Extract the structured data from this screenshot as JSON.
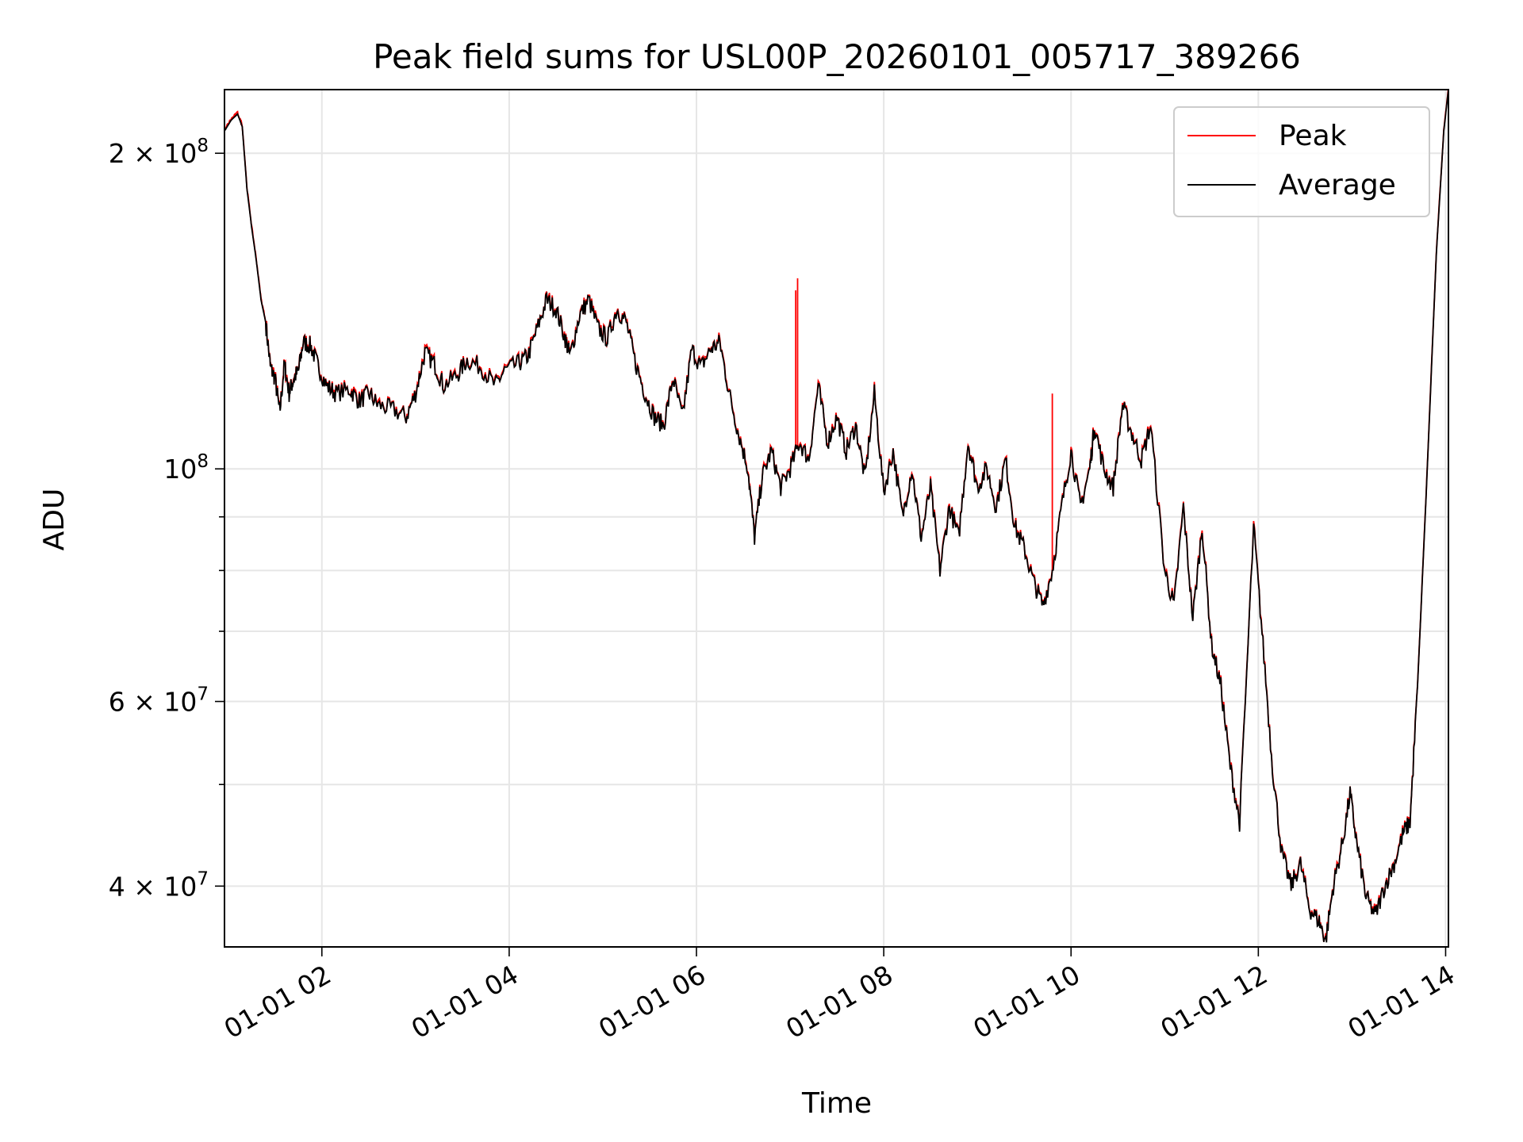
{
  "chart_data": {
    "type": "line",
    "title": "Peak field sums for USL00P_20260101_005717_389266",
    "xlabel": "Time",
    "ylabel": "ADU",
    "y_scale": "log",
    "x_range_hours": [
      0.96,
      14.03
    ],
    "ylim": [
      35000000,
      230000000
    ],
    "grid": true,
    "legend_position": "top-right",
    "x_ticks": [
      {
        "hour": 2,
        "label": "01-01 02"
      },
      {
        "hour": 4,
        "label": "01-01 04"
      },
      {
        "hour": 6,
        "label": "01-01 06"
      },
      {
        "hour": 8,
        "label": "01-01 08"
      },
      {
        "hour": 10,
        "label": "01-01 10"
      },
      {
        "hour": 12,
        "label": "01-01 12"
      },
      {
        "hour": 14,
        "label": "01-01 14"
      }
    ],
    "y_major_ticks": [
      {
        "value": 40000000,
        "mantissa": "4",
        "exponent": "7"
      },
      {
        "value": 60000000,
        "mantissa": "6",
        "exponent": "7"
      },
      {
        "value": 100000000,
        "mantissa": "",
        "exponent": "8"
      },
      {
        "value": 200000000,
        "mantissa": "2",
        "exponent": "8"
      }
    ],
    "y_minor_ticks": [
      50000000,
      70000000,
      80000000,
      90000000
    ],
    "y_tick_base": "10",
    "y_tick_times": "×",
    "series": [
      {
        "name": "Peak",
        "color": "#ff0000",
        "spikes": [
          [
            7.06,
            148000000
          ],
          [
            7.08,
            152000000
          ],
          [
            9.8,
            118000000
          ]
        ]
      },
      {
        "name": "Average",
        "color": "#000000",
        "points": [
          [
            0.96,
            210000000
          ],
          [
            1.03,
            215000000
          ],
          [
            1.1,
            218000000
          ],
          [
            1.15,
            212000000
          ],
          [
            1.2,
            185000000
          ],
          [
            1.25,
            170000000
          ],
          [
            1.3,
            158000000
          ],
          [
            1.35,
            145000000
          ],
          [
            1.4,
            138000000
          ],
          [
            1.45,
            125000000
          ],
          [
            1.5,
            122000000
          ],
          [
            1.55,
            113000000
          ],
          [
            1.6,
            126000000
          ],
          [
            1.65,
            118000000
          ],
          [
            1.7,
            122000000
          ],
          [
            1.75,
            124000000
          ],
          [
            1.8,
            132000000
          ],
          [
            1.88,
            131000000
          ],
          [
            1.95,
            126000000
          ],
          [
            2.05,
            120000000
          ],
          [
            2.15,
            118000000
          ],
          [
            2.3,
            119000000
          ],
          [
            2.4,
            116000000
          ],
          [
            2.5,
            118000000
          ],
          [
            2.6,
            115000000
          ],
          [
            2.75,
            114000000
          ],
          [
            2.9,
            112000000
          ],
          [
            3.0,
            118000000
          ],
          [
            3.1,
            129000000
          ],
          [
            3.2,
            126000000
          ],
          [
            3.3,
            120000000
          ],
          [
            3.45,
            123000000
          ],
          [
            3.55,
            127000000
          ],
          [
            3.7,
            125000000
          ],
          [
            3.85,
            120000000
          ],
          [
            3.95,
            124000000
          ],
          [
            4.1,
            126000000
          ],
          [
            4.2,
            128000000
          ],
          [
            4.3,
            136000000
          ],
          [
            4.4,
            145000000
          ],
          [
            4.5,
            142000000
          ],
          [
            4.6,
            133000000
          ],
          [
            4.65,
            128000000
          ],
          [
            4.75,
            140000000
          ],
          [
            4.85,
            145000000
          ],
          [
            4.95,
            136000000
          ],
          [
            5.05,
            133000000
          ],
          [
            5.15,
            142000000
          ],
          [
            5.25,
            138000000
          ],
          [
            5.35,
            126000000
          ],
          [
            5.45,
            118000000
          ],
          [
            5.55,
            112000000
          ],
          [
            5.65,
            110000000
          ],
          [
            5.75,
            122000000
          ],
          [
            5.85,
            112000000
          ],
          [
            5.95,
            130000000
          ],
          [
            6.05,
            125000000
          ],
          [
            6.15,
            130000000
          ],
          [
            6.25,
            132000000
          ],
          [
            6.35,
            118000000
          ],
          [
            6.45,
            108000000
          ],
          [
            6.55,
            100000000
          ],
          [
            6.62,
            86000000
          ],
          [
            6.7,
            98000000
          ],
          [
            6.8,
            104000000
          ],
          [
            6.9,
            96000000
          ],
          [
            7.0,
            100000000
          ],
          [
            7.1,
            106000000
          ],
          [
            7.2,
            102000000
          ],
          [
            7.3,
            120000000
          ],
          [
            7.4,
            106000000
          ],
          [
            7.5,
            112000000
          ],
          [
            7.6,
            104000000
          ],
          [
            7.7,
            110000000
          ],
          [
            7.8,
            98000000
          ],
          [
            7.9,
            118000000
          ],
          [
            8.0,
            95000000
          ],
          [
            8.1,
            104000000
          ],
          [
            8.2,
            90000000
          ],
          [
            8.3,
            100000000
          ],
          [
            8.4,
            86000000
          ],
          [
            8.5,
            96000000
          ],
          [
            8.6,
            80000000
          ],
          [
            8.7,
            92000000
          ],
          [
            8.8,
            86000000
          ],
          [
            8.9,
            106000000
          ],
          [
            9.0,
            96000000
          ],
          [
            9.1,
            100000000
          ],
          [
            9.2,
            92000000
          ],
          [
            9.3,
            102000000
          ],
          [
            9.4,
            88000000
          ],
          [
            9.5,
            84000000
          ],
          [
            9.6,
            78000000
          ],
          [
            9.7,
            74000000
          ],
          [
            9.8,
            80000000
          ],
          [
            9.9,
            92000000
          ],
          [
            10.0,
            104000000
          ],
          [
            10.1,
            92000000
          ],
          [
            10.2,
            100000000
          ],
          [
            10.25,
            110000000
          ],
          [
            10.35,
            100000000
          ],
          [
            10.45,
            96000000
          ],
          [
            10.55,
            115000000
          ],
          [
            10.65,
            108000000
          ],
          [
            10.75,
            102000000
          ],
          [
            10.85,
            110000000
          ],
          [
            11.0,
            80000000
          ],
          [
            11.1,
            74000000
          ],
          [
            11.2,
            92000000
          ],
          [
            11.3,
            72000000
          ],
          [
            11.4,
            88000000
          ],
          [
            11.5,
            68000000
          ],
          [
            11.6,
            62000000
          ],
          [
            11.7,
            52000000
          ],
          [
            11.8,
            46000000
          ],
          [
            11.95,
            88000000
          ],
          [
            12.05,
            68000000
          ],
          [
            12.15,
            52000000
          ],
          [
            12.25,
            43000000
          ],
          [
            12.35,
            40000000
          ],
          [
            12.45,
            42000000
          ],
          [
            12.55,
            38000000
          ],
          [
            12.65,
            37000000
          ],
          [
            12.72,
            35500000
          ],
          [
            12.8,
            40000000
          ],
          [
            12.9,
            44000000
          ],
          [
            12.98,
            49000000
          ],
          [
            13.05,
            44000000
          ],
          [
            13.15,
            39000000
          ],
          [
            13.25,
            37500000
          ],
          [
            13.35,
            40000000
          ],
          [
            13.45,
            42000000
          ],
          [
            13.55,
            45000000
          ],
          [
            13.62,
            46000000
          ],
          [
            13.7,
            62000000
          ],
          [
            13.8,
            98000000
          ],
          [
            13.9,
            160000000
          ],
          [
            13.98,
            210000000
          ],
          [
            14.03,
            230000000
          ]
        ]
      }
    ]
  }
}
